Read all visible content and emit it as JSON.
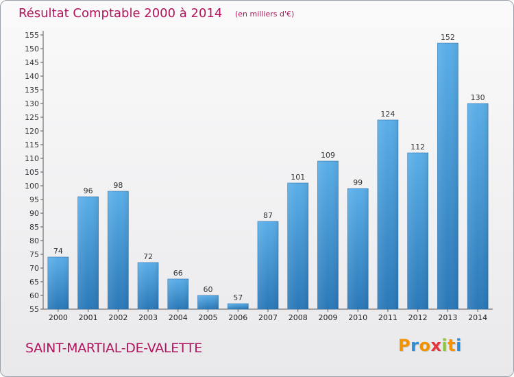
{
  "header": {
    "title": "Résultat Comptable 2000 à 2014",
    "subtitle": "(en milliers d'€)"
  },
  "footer": {
    "commune": "SAINT-MARTIAL-DE-VALETTE",
    "logo_text": "Proxiti",
    "logo_letters": [
      {
        "ch": "P",
        "color": "#f39200"
      },
      {
        "ch": "r",
        "color": "#2e8bd0"
      },
      {
        "ch": "o",
        "color": "#f39200"
      },
      {
        "ch": "x",
        "color": "#e6333d"
      },
      {
        "ch": "i",
        "color": "#8cc63e"
      },
      {
        "ch": "t",
        "color": "#f39200"
      },
      {
        "ch": "i",
        "color": "#2e8bd0"
      }
    ]
  },
  "chart_data": {
    "type": "bar",
    "title": "Résultat Comptable 2000 à 2014",
    "subtitle": "(en milliers d'€)",
    "xlabel": "",
    "ylabel": "",
    "categories": [
      "2000",
      "2001",
      "2002",
      "2003",
      "2004",
      "2005",
      "2006",
      "2007",
      "2008",
      "2009",
      "2010",
      "2011",
      "2012",
      "2013",
      "2014"
    ],
    "values": [
      74,
      96,
      98,
      72,
      66,
      60,
      57,
      87,
      101,
      109,
      99,
      124,
      112,
      152,
      130
    ],
    "ylim": [
      55,
      155
    ],
    "ytick_step": 5,
    "grid": false,
    "bar_color": "#3a8fd4",
    "bar_color_light": "#5aaee8",
    "bar_color_dark": "#2a78b8"
  }
}
